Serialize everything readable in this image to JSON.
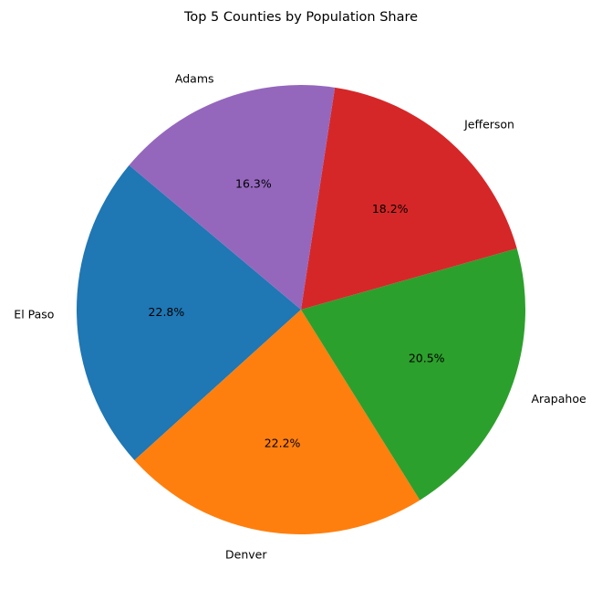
{
  "chart_data": {
    "type": "pie",
    "title": "Top 5 Counties by Population Share",
    "start_angle_deg": 140,
    "direction": "counterclockwise",
    "slices": [
      {
        "label": "El Paso",
        "value": 22.8,
        "pct_label": "22.8%",
        "color": "#1f77b4"
      },
      {
        "label": "Denver",
        "value": 22.2,
        "pct_label": "22.2%",
        "color": "#ff7f0e"
      },
      {
        "label": "Arapahoe",
        "value": 20.5,
        "pct_label": "20.5%",
        "color": "#2ca02c"
      },
      {
        "label": "Jefferson",
        "value": 18.2,
        "pct_label": "18.2%",
        "color": "#d62728"
      },
      {
        "label": "Adams",
        "value": 16.3,
        "pct_label": "16.3%",
        "color": "#9467bd"
      }
    ]
  }
}
